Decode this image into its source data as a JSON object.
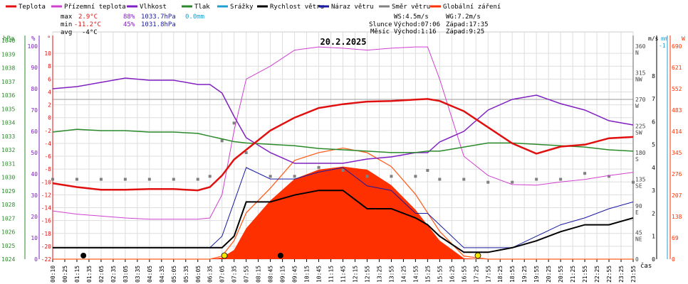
{
  "chart_data": {
    "type": "line",
    "title": "20.2.2025",
    "legend": [
      {
        "name": "Teplota",
        "color": "#e01010"
      },
      {
        "name": "Přízemní teplota",
        "color": "#d040d0"
      },
      {
        "name": "Vlhkost",
        "color": "#8020c0"
      },
      {
        "name": "Tlak",
        "color": "#2a8a2a"
      },
      {
        "name": "Srážky",
        "color": "#20a0d0"
      },
      {
        "name": "Rychlost větru",
        "color": "#000000"
      },
      {
        "name": "Náraz větru",
        "color": "#1a1aa0"
      },
      {
        "name": "Směr větru",
        "color": "#808080"
      },
      {
        "name": "Globální záření",
        "color": "#ff3000"
      }
    ],
    "stats": {
      "max_label": "max",
      "max_temp": "2.9°C",
      "max_hum": "88%",
      "max_pres": "1033.7hPa",
      "rain": "0.0mm",
      "min_label": "min",
      "min_temp": "-11.2°C",
      "min_hum": "45%",
      "min_pres": "1031.8hPa",
      "avg_label": "avg",
      "avg_temp": "-4°C",
      "ws": "WS:4.5m/s",
      "wg": "WG:7.2m/s",
      "sun_label": "Slunce",
      "sun_rise": "Východ:07:06",
      "sun_set": "Západ:17:35",
      "moon_label": "Měsíc",
      "moon_rise": "Východ:1:16",
      "moon_set": "Západ:9:25"
    },
    "axis_units": {
      "hpa": "hPa",
      "pct": "%",
      "deg": "°",
      "ms": "m/s",
      "mm": "mm",
      "w": "W",
      "x": "čas"
    },
    "ylim_temp": [
      -22,
      12
    ],
    "yticks_hpa": [
      "1040",
      "1039",
      "1038",
      "1037",
      "1036",
      "1035",
      "1034",
      "1033",
      "1032",
      "1031",
      "1030",
      "1029",
      "1028",
      "1027",
      "1026",
      "1025",
      "1024"
    ],
    "yticks_pct": [
      "100",
      "90",
      "80",
      "70",
      "60",
      "50",
      "40",
      "30",
      "20",
      "10",
      "0"
    ],
    "yticks_temp": [
      "10",
      "8",
      "6",
      "4",
      "2",
      "0",
      "-2",
      "-4",
      "-6",
      "-8",
      "-10",
      "-12",
      "-14",
      "-16",
      "-18",
      "-20",
      "-22"
    ],
    "yticks_dir": [
      {
        "v": "360",
        "d": "N"
      },
      {
        "v": "315",
        "d": "NW"
      },
      {
        "v": "270",
        "d": "W"
      },
      {
        "v": "225",
        "d": "SW"
      },
      {
        "v": "180",
        "d": "S"
      },
      {
        "v": "135",
        "d": "SE"
      },
      {
        "v": "90",
        "d": "E"
      },
      {
        "v": "45",
        "d": "NE"
      },
      {
        "v": "0",
        "d": ""
      }
    ],
    "yticks_ms": [
      "8",
      "7",
      "6",
      "5",
      "4",
      "3",
      "2",
      "1",
      "0"
    ],
    "yticks_mm": [
      "-1"
    ],
    "yticks_w": [
      "690",
      "621",
      "552",
      "483",
      "414",
      "345",
      "276",
      "207",
      "138",
      "69",
      "0"
    ],
    "xticks": [
      "00:10",
      "00:25",
      "01:15",
      "01:35",
      "02:05",
      "02:35",
      "03:05",
      "03:35",
      "04:05",
      "04:35",
      "05:05",
      "05:35",
      "06:05",
      "06:35",
      "07:05",
      "07:35",
      "07:55",
      "08:15",
      "08:45",
      "09:15",
      "09:45",
      "10:15",
      "10:45",
      "11:15",
      "11:45",
      "12:15",
      "12:55",
      "13:25",
      "13:55",
      "14:25",
      "14:55",
      "15:25",
      "15:55",
      "16:25",
      "16:55",
      "17:25",
      "17:55",
      "18:25",
      "18:55",
      "19:25",
      "19:55",
      "20:25",
      "20:55",
      "21:25",
      "21:55",
      "22:25",
      "22:55",
      "23:25",
      "23:55"
    ],
    "series_hours": [
      0,
      1,
      2,
      3,
      4,
      5,
      6,
      6.5,
      7,
      7.5,
      8,
      9,
      10,
      11,
      12,
      13,
      14,
      15,
      15.5,
      16,
      17,
      18,
      19,
      20,
      21,
      22,
      23,
      24
    ],
    "temperature": [
      -10.2,
      -10.8,
      -11.2,
      -11.2,
      -11.1,
      -11.1,
      -11.3,
      -10.8,
      -9.0,
      -6.5,
      -5.0,
      -2.0,
      0.0,
      1.5,
      2.1,
      2.5,
      2.6,
      2.8,
      2.9,
      2.6,
      1.0,
      -1.5,
      -4.0,
      -5.6,
      -4.5,
      -4.2,
      -3.2,
      -3.0
    ],
    "ground_temperature": [
      -14.5,
      -15.0,
      -15.3,
      -15.6,
      -15.8,
      -15.8,
      -15.8,
      -15.6,
      -12,
      -2,
      6,
      8,
      10.5,
      11,
      10.8,
      10.5,
      10.8,
      11,
      11,
      6,
      -6,
      -9,
      -10.4,
      -10.5,
      -10,
      -9.6,
      -9,
      -8.5
    ],
    "humidity": [
      80,
      81,
      83,
      85,
      84,
      84,
      82,
      82,
      78,
      67,
      57,
      50,
      45,
      45,
      45,
      47,
      48,
      50,
      50,
      55,
      60,
      70,
      75,
      77,
      73,
      70,
      65,
      63
    ],
    "pressure": [
      1033.3,
      1033.5,
      1033.4,
      1033.4,
      1033.3,
      1033.3,
      1033.2,
      1033.0,
      1032.8,
      1032.6,
      1032.5,
      1032.4,
      1032.3,
      1032.1,
      1032.0,
      1031.9,
      1031.8,
      1031.8,
      1031.9,
      1031.9,
      1032.2,
      1032.5,
      1032.5,
      1032.4,
      1032.3,
      1032.2,
      1032.0,
      1031.9
    ],
    "wind_speed": [
      0.5,
      0.5,
      0.5,
      0.5,
      0.5,
      0.5,
      0.5,
      0.5,
      0.5,
      1.0,
      2.5,
      2.5,
      2.8,
      3.0,
      3.0,
      2.2,
      2.2,
      1.8,
      1.5,
      1.0,
      0.3,
      0.3,
      0.5,
      0.8,
      1.2,
      1.5,
      1.5,
      1.8
    ],
    "wind_gust": [
      0.5,
      0.5,
      0.5,
      0.5,
      0.5,
      0.5,
      0.5,
      0.5,
      1.0,
      2.5,
      4.0,
      3.5,
      3.5,
      3.8,
      4.0,
      3.2,
      3.0,
      2.0,
      2.0,
      1.5,
      0.5,
      0.5,
      0.5,
      1.0,
      1.5,
      1.8,
      2.2,
      2.5
    ],
    "wind_direction": [
      135,
      135,
      135,
      135,
      135,
      135,
      135,
      140,
      200,
      230,
      180,
      140,
      140,
      155,
      150,
      140,
      140,
      140,
      150,
      135,
      135,
      130,
      130,
      135,
      135,
      145,
      140,
      130
    ],
    "radiation": [
      0,
      0,
      0,
      0,
      0,
      0,
      0,
      0,
      5,
      30,
      100,
      190,
      260,
      290,
      300,
      290,
      240,
      160,
      110,
      60,
      3,
      0,
      0,
      0,
      0,
      0,
      0,
      0
    ],
    "radiation_clear_sky": [
      0,
      0,
      0,
      0,
      0,
      0,
      0,
      0,
      10,
      60,
      150,
      230,
      320,
      345,
      360,
      345,
      300,
      210,
      150,
      90,
      10,
      0,
      0,
      0,
      0,
      0,
      0,
      0
    ],
    "sunrise_hour": 7.1,
    "sunset_hour": 17.58,
    "moonrise_hour": 1.27,
    "moonset_hour": 9.42
  }
}
